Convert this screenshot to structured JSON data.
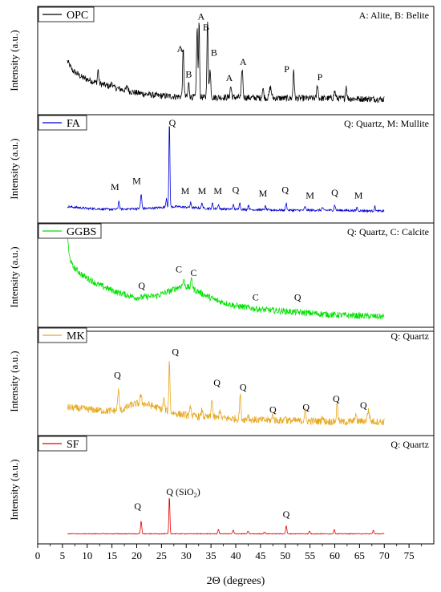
{
  "chart_data": {
    "type": "line",
    "xlabel": "2Θ (degrees)",
    "xlim": [
      0,
      80
    ],
    "x_ticks": [
      "0",
      "5",
      "10",
      "15",
      "20",
      "25",
      "30",
      "35",
      "40",
      "45",
      "50",
      "55",
      "60",
      "65",
      "70",
      "75"
    ],
    "x_range": [
      6,
      70
    ],
    "ylabel": "Intensity (a.u.)",
    "panels": [
      {
        "series": "OPC",
        "color": "#000000",
        "legend_note": "A: Alite, B: Belite",
        "baseline_points": [
          [
            6,
            0.52
          ],
          [
            7,
            0.42
          ],
          [
            9,
            0.34
          ],
          [
            12,
            0.28
          ],
          [
            16,
            0.22
          ],
          [
            20,
            0.17
          ],
          [
            24,
            0.14
          ],
          [
            28,
            0.13
          ],
          [
            34,
            0.12
          ],
          [
            40,
            0.12
          ],
          [
            50,
            0.11
          ],
          [
            60,
            0.11
          ],
          [
            70,
            0.1
          ]
        ],
        "noise": 0.035,
        "peaks": [
          [
            12.2,
            0.15,
            0.12
          ],
          [
            15.0,
            0.05,
            0.15
          ],
          [
            18.1,
            0.05,
            0.15
          ],
          [
            29.4,
            0.52,
            0.13
          ],
          [
            30.5,
            0.15,
            0.13
          ],
          [
            32.2,
            0.78,
            0.12
          ],
          [
            32.6,
            0.85,
            0.1
          ],
          [
            34.3,
            0.85,
            0.12
          ],
          [
            34.8,
            0.3,
            0.15
          ],
          [
            39.0,
            0.12,
            0.15
          ],
          [
            41.3,
            0.32,
            0.14
          ],
          [
            45.5,
            0.1,
            0.15
          ],
          [
            47.0,
            0.12,
            0.2
          ],
          [
            51.7,
            0.33,
            0.12
          ],
          [
            56.5,
            0.16,
            0.13
          ],
          [
            60.0,
            0.08,
            0.15
          ],
          [
            62.3,
            0.14,
            0.13
          ]
        ],
        "labels": [
          {
            "text": "A",
            "x": 33.0,
            "y": 0.98
          },
          {
            "text": "B",
            "x": 34.0,
            "y": 0.86
          },
          {
            "text": "A",
            "x": 28.8,
            "y": 0.62
          },
          {
            "text": "B",
            "x": 30.5,
            "y": 0.34
          },
          {
            "text": "B",
            "x": 35.6,
            "y": 0.58
          },
          {
            "text": "A",
            "x": 38.7,
            "y": 0.3
          },
          {
            "text": "A",
            "x": 41.5,
            "y": 0.48
          },
          {
            "text": "P",
            "x": 50.3,
            "y": 0.4
          },
          {
            "text": "P",
            "x": 57.0,
            "y": 0.31
          }
        ]
      },
      {
        "series": "FA",
        "color": "#0000d0",
        "legend_note": "Q: Quartz, M: Mullite",
        "baseline_points": [
          [
            6,
            0.11
          ],
          [
            10,
            0.09
          ],
          [
            15,
            0.08
          ],
          [
            22,
            0.09
          ],
          [
            28,
            0.11
          ],
          [
            34,
            0.09
          ],
          [
            40,
            0.08
          ],
          [
            50,
            0.07
          ],
          [
            60,
            0.07
          ],
          [
            70,
            0.06
          ]
        ],
        "noise": 0.012,
        "peaks": [
          [
            16.4,
            0.09,
            0.12
          ],
          [
            20.9,
            0.16,
            0.12
          ],
          [
            26.0,
            0.1,
            0.12
          ],
          [
            26.6,
            0.96,
            0.1
          ],
          [
            30.9,
            0.05,
            0.12
          ],
          [
            33.2,
            0.06,
            0.12
          ],
          [
            35.3,
            0.06,
            0.12
          ],
          [
            36.5,
            0.05,
            0.12
          ],
          [
            39.5,
            0.05,
            0.12
          ],
          [
            40.8,
            0.08,
            0.12
          ],
          [
            42.6,
            0.05,
            0.12
          ],
          [
            46.0,
            0.04,
            0.12
          ],
          [
            50.2,
            0.08,
            0.12
          ],
          [
            54.0,
            0.04,
            0.12
          ],
          [
            57.5,
            0.03,
            0.12
          ],
          [
            60.0,
            0.06,
            0.12
          ],
          [
            64.5,
            0.04,
            0.12
          ],
          [
            68.1,
            0.05,
            0.12
          ]
        ],
        "labels": [
          {
            "text": "Q",
            "x": 27.2,
            "y": 1.0
          },
          {
            "text": "M",
            "x": 15.6,
            "y": 0.29
          },
          {
            "text": "M",
            "x": 20.0,
            "y": 0.36
          },
          {
            "text": "M",
            "x": 29.8,
            "y": 0.25
          },
          {
            "text": "M",
            "x": 33.2,
            "y": 0.25
          },
          {
            "text": "M",
            "x": 36.4,
            "y": 0.25
          },
          {
            "text": "Q",
            "x": 40.0,
            "y": 0.26
          },
          {
            "text": "M",
            "x": 45.5,
            "y": 0.22
          },
          {
            "text": "Q",
            "x": 50.0,
            "y": 0.26
          },
          {
            "text": "M",
            "x": 55.0,
            "y": 0.2
          },
          {
            "text": "Q",
            "x": 60.0,
            "y": 0.23
          },
          {
            "text": "M",
            "x": 64.8,
            "y": 0.2
          }
        ]
      },
      {
        "series": "GGBS",
        "color": "#00e000",
        "legend_note": "Q: Quartz, C: Calcite",
        "baseline_points": [
          [
            6,
            1.0
          ],
          [
            6.3,
            0.78
          ],
          [
            7,
            0.65
          ],
          [
            9,
            0.55
          ],
          [
            12,
            0.45
          ],
          [
            16,
            0.36
          ],
          [
            20,
            0.3
          ],
          [
            24,
            0.32
          ],
          [
            27,
            0.38
          ],
          [
            29,
            0.43
          ],
          [
            31,
            0.41
          ],
          [
            33,
            0.35
          ],
          [
            36,
            0.27
          ],
          [
            40,
            0.21
          ],
          [
            45,
            0.17
          ],
          [
            50,
            0.15
          ],
          [
            55,
            0.13
          ],
          [
            60,
            0.11
          ],
          [
            65,
            0.1
          ],
          [
            70,
            0.09
          ]
        ],
        "noise": 0.035,
        "peaks": [
          [
            29.5,
            0.06,
            0.18
          ],
          [
            31.1,
            0.12,
            0.12
          ]
        ],
        "labels": [
          {
            "text": "Q",
            "x": 21.0,
            "y": 0.4
          },
          {
            "text": "C",
            "x": 28.5,
            "y": 0.58
          },
          {
            "text": "C",
            "x": 31.5,
            "y": 0.54
          },
          {
            "text": "C",
            "x": 44.0,
            "y": 0.27
          },
          {
            "text": "Q",
            "x": 52.5,
            "y": 0.27
          }
        ]
      },
      {
        "series": "MK",
        "color": "#e6a820",
        "legend_note": "Q: Quartz",
        "baseline_points": [
          [
            6,
            0.24
          ],
          [
            10,
            0.22
          ],
          [
            14,
            0.2
          ],
          [
            17,
            0.21
          ],
          [
            19,
            0.27
          ],
          [
            21,
            0.29
          ],
          [
            23,
            0.26
          ],
          [
            25,
            0.22
          ],
          [
            28,
            0.17
          ],
          [
            32,
            0.14
          ],
          [
            38,
            0.12
          ],
          [
            45,
            0.1
          ],
          [
            55,
            0.09
          ],
          [
            62,
            0.08
          ],
          [
            66,
            0.09
          ],
          [
            70,
            0.08
          ]
        ],
        "noise": 0.04,
        "peaks": [
          [
            16.3,
            0.22,
            0.15
          ],
          [
            20.8,
            0.08,
            0.15
          ],
          [
            25.5,
            0.12,
            0.14
          ],
          [
            26.6,
            0.58,
            0.11
          ],
          [
            30.9,
            0.12,
            0.13
          ],
          [
            33.2,
            0.08,
            0.13
          ],
          [
            35.2,
            0.22,
            0.13
          ],
          [
            36.8,
            0.1,
            0.13
          ],
          [
            40.9,
            0.27,
            0.13
          ],
          [
            42.5,
            0.06,
            0.12
          ],
          [
            47.5,
            0.07,
            0.13
          ],
          [
            50.0,
            0.06,
            0.13
          ],
          [
            54.0,
            0.12,
            0.13
          ],
          [
            57.5,
            0.06,
            0.13
          ],
          [
            60.5,
            0.2,
            0.15
          ],
          [
            64.2,
            0.09,
            0.13
          ],
          [
            66.8,
            0.12,
            0.2
          ]
        ],
        "labels": [
          {
            "text": "Q",
            "x": 27.8,
            "y": 0.82
          },
          {
            "text": "Q",
            "x": 16.1,
            "y": 0.56
          },
          {
            "text": "Q",
            "x": 36.2,
            "y": 0.48
          },
          {
            "text": "Q",
            "x": 41.5,
            "y": 0.43
          },
          {
            "text": "Q",
            "x": 47.5,
            "y": 0.18
          },
          {
            "text": "Q",
            "x": 54.2,
            "y": 0.21
          },
          {
            "text": "Q",
            "x": 60.3,
            "y": 0.3
          },
          {
            "text": "Q",
            "x": 65.8,
            "y": 0.23
          }
        ]
      },
      {
        "series": "SF",
        "color": "#e00000",
        "legend_note": "Q: Quartz",
        "baseline_points": [
          [
            6,
            0.04
          ],
          [
            20,
            0.04
          ],
          [
            40,
            0.04
          ],
          [
            70,
            0.04
          ]
        ],
        "noise": 0.004,
        "peaks": [
          [
            20.9,
            0.14,
            0.12
          ],
          [
            26.6,
            0.42,
            0.1
          ],
          [
            36.5,
            0.05,
            0.12
          ],
          [
            39.5,
            0.04,
            0.12
          ],
          [
            42.5,
            0.03,
            0.12
          ],
          [
            45.8,
            0.02,
            0.12
          ],
          [
            50.2,
            0.09,
            0.12
          ],
          [
            54.9,
            0.03,
            0.12
          ],
          [
            59.9,
            0.05,
            0.12
          ],
          [
            67.8,
            0.04,
            0.12
          ]
        ],
        "labels": [
          {
            "text": "Q",
            "x": 20.2,
            "y": 0.31
          },
          {
            "text": "Q (SiO",
            "x": 29.4,
            "y": 0.47,
            "sub": "2",
            "suffix": ")"
          },
          {
            "text": "Q",
            "x": 50.2,
            "y": 0.22
          }
        ]
      }
    ]
  }
}
